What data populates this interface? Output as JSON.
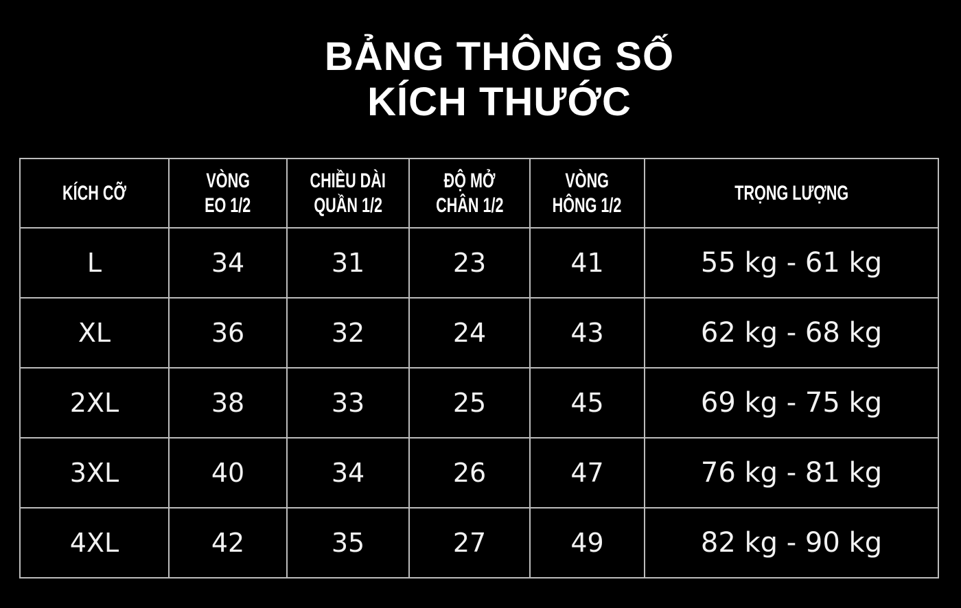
{
  "title": {
    "line1": "BẢNG THÔNG SỐ",
    "line2": "KÍCH THƯỚC"
  },
  "table": {
    "headers": [
      [
        "KÍCH CỠ"
      ],
      [
        "VÒNG",
        "EO 1/2"
      ],
      [
        "CHIỀU DÀI",
        "QUẦN 1/2"
      ],
      [
        "ĐỘ MỞ",
        "CHÂN 1/2"
      ],
      [
        "VÒNG",
        "HÔNG 1/2"
      ],
      [
        "TRỌNG LƯỢNG"
      ]
    ],
    "rows": [
      [
        "L",
        "34",
        "31",
        "23",
        "41",
        "55 kg - 61 kg"
      ],
      [
        "XL",
        "36",
        "32",
        "24",
        "43",
        "62 kg - 68 kg"
      ],
      [
        "2XL",
        "38",
        "33",
        "25",
        "45",
        "69 kg - 75 kg"
      ],
      [
        "3XL",
        "40",
        "34",
        "26",
        "47",
        "76 kg - 81 kg"
      ],
      [
        "4XL",
        "42",
        "35",
        "27",
        "49",
        "82 kg - 90 kg"
      ]
    ]
  },
  "colors": {
    "background": "#000000",
    "text": "#ffffff",
    "border": "#bdbdbd"
  }
}
